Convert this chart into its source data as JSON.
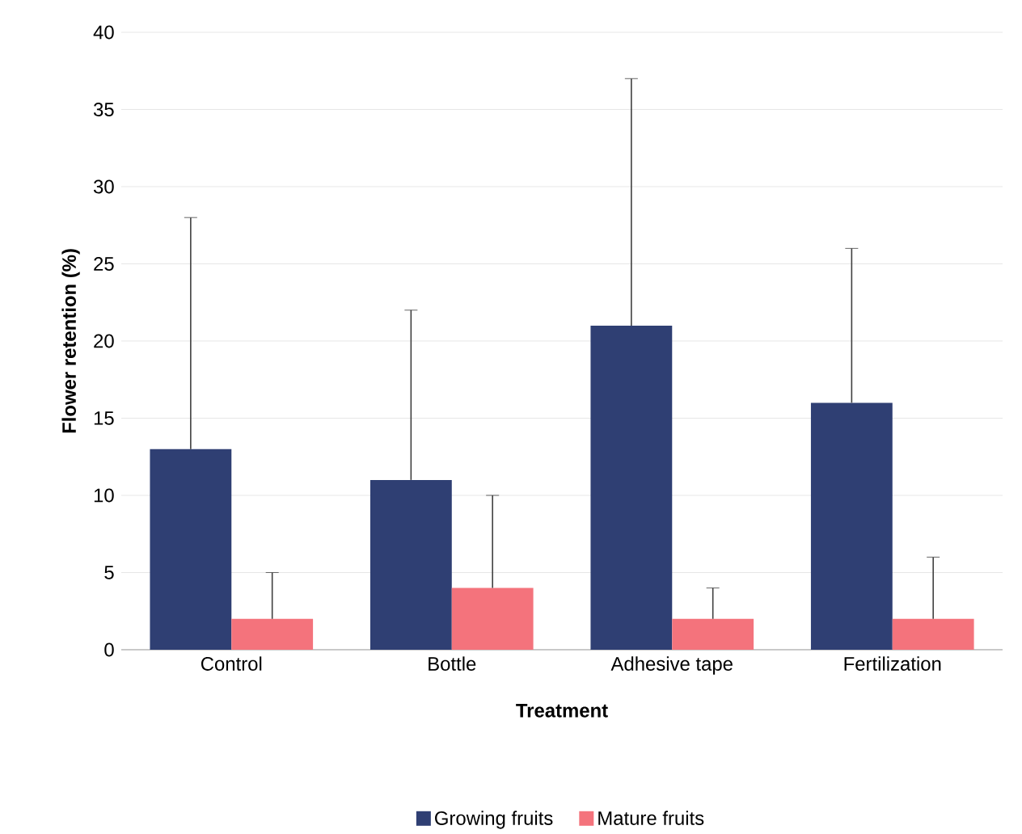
{
  "chart_data": {
    "type": "bar",
    "xlabel": "Treatment",
    "ylabel": "Flower retention (%)",
    "categories": [
      "Control",
      "Bottle",
      "Adhesive tape",
      "Fertilization"
    ],
    "series": [
      {
        "name": "Growing fruits",
        "color": "#2f3f73",
        "values": [
          13,
          11,
          21,
          16
        ],
        "errors": [
          [
            13,
            28
          ],
          [
            11,
            22
          ],
          [
            21,
            37
          ],
          [
            16,
            26
          ]
        ]
      },
      {
        "name": "Mature fruits",
        "color": "#f4737c",
        "values": [
          2,
          4,
          2,
          2
        ],
        "errors": [
          [
            2,
            5
          ],
          [
            4,
            10
          ],
          [
            2,
            4
          ],
          [
            2,
            6
          ]
        ]
      }
    ],
    "ylim": [
      0,
      40
    ],
    "yticks": [
      0,
      5,
      10,
      15,
      20,
      25,
      30,
      35,
      40
    ],
    "grid": "y",
    "legend": "bottom"
  }
}
